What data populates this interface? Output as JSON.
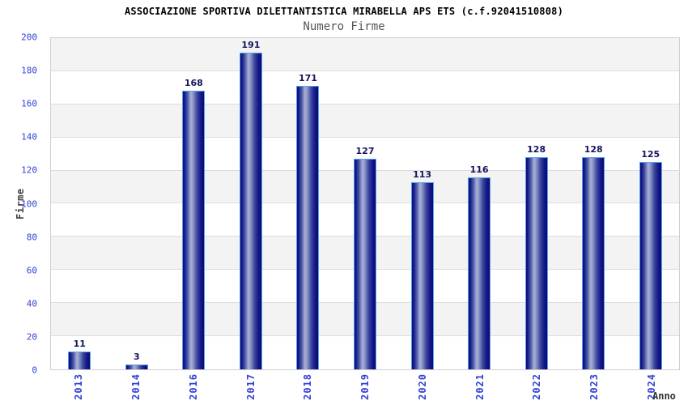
{
  "header": {
    "title": "ASSOCIAZIONE SPORTIVA DILETTANTISTICA MIRABELLA APS ETS (c.f.92041510808)",
    "subtitle": "Numero Firme"
  },
  "chart_data": {
    "type": "bar",
    "title": "ASSOCIAZIONE SPORTIVA DILETTANTISTICA MIRABELLA APS ETS (c.f.92041510808)",
    "subtitle": "Numero Firme",
    "categories": [
      "2013",
      "2014",
      "2016",
      "2017",
      "2018",
      "2019",
      "2020",
      "2021",
      "2022",
      "2023",
      "2024"
    ],
    "values": [
      11,
      3,
      168,
      191,
      171,
      127,
      113,
      116,
      128,
      128,
      125
    ],
    "xlabel": "Anno",
    "ylabel": "Firme",
    "ylim": [
      0,
      200
    ],
    "yticks": [
      0,
      20,
      40,
      60,
      80,
      100,
      120,
      140,
      160,
      180,
      200
    ],
    "grid": "horizontal alternating bands",
    "legend_position": "none",
    "colors": {
      "bar_dark": "#0d0d78",
      "bar_highlight": "#aab1d8",
      "bar_border": "#55a3e8",
      "axis_tick_label": "#3340d4",
      "value_label": "#15155e",
      "band_gray": "#f3f3f3",
      "band_white": "#ffffff",
      "gridline": "#dcdcdc",
      "plot_border": "#d0d0d0",
      "title_color": "#000000",
      "subtitle_color": "#555555"
    }
  }
}
